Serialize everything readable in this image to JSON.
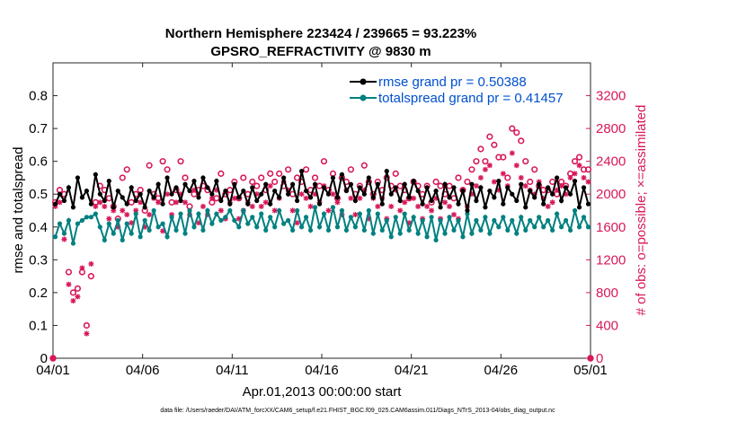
{
  "chart_data": {
    "type": "line",
    "title_line1": "Northern Hemisphere 223424 / 239665 = 93.223%",
    "title_line2": "GPSRO_REFRACTIVITY @ 9830 m",
    "xlabel": "Apr.01,2013 00:00:00 start",
    "ylabel_left": "rmse and totalspread",
    "ylabel_right": "# of obs: o=possible; ×=assimilated",
    "footer": "data file: /Users/raeder/DAI/ATM_forcXX/CAM6_setup/f.e21.FHIST_BGC.f09_025.CAM6assim.011/Diags_NTrS_2013-04/obs_diag_output.nc",
    "xlim": [
      0,
      30
    ],
    "ylim_left": [
      0,
      0.9
    ],
    "ylim_right": [
      0,
      3600
    ],
    "x_ticks": [
      0,
      5,
      10,
      15,
      20,
      25,
      30
    ],
    "x_tick_labels": [
      "04/01",
      "04/06",
      "04/11",
      "04/16",
      "04/21",
      "04/26",
      "05/01"
    ],
    "y_left_ticks": [
      0,
      0.1,
      0.2,
      0.3,
      0.4,
      0.5,
      0.6,
      0.7,
      0.8
    ],
    "y_left_tick_labels": [
      "0",
      "0.1",
      "0.2",
      "0.3",
      "0.4",
      "0.5",
      "0.6",
      "0.7",
      "0.8"
    ],
    "y_right_ticks": [
      0,
      400,
      800,
      1200,
      1600,
      2000,
      2400,
      2800,
      3200
    ],
    "y_right_tick_labels": [
      "0",
      "400",
      "800",
      "1200",
      "1600",
      "2000",
      "2400",
      "2800",
      "3200"
    ],
    "legend": [
      "rmse grand pr = 0.50388",
      "totalspread grand pr = 0.41457"
    ],
    "colors": {
      "rmse": "#000000",
      "spread": "#008080",
      "obs": "#d8185a",
      "axis_right": "#d8185a",
      "legend_text": "#0050d0"
    },
    "x": [
      0.125,
      0.375,
      0.625,
      0.875,
      1.125,
      1.375,
      1.625,
      1.875,
      2.125,
      2.375,
      2.625,
      2.875,
      3.125,
      3.375,
      3.625,
      3.875,
      4.125,
      4.375,
      4.625,
      4.875,
      5.125,
      5.375,
      5.625,
      5.875,
      6.125,
      6.375,
      6.625,
      6.875,
      7.125,
      7.375,
      7.625,
      7.875,
      8.125,
      8.375,
      8.625,
      8.875,
      9.125,
      9.375,
      9.625,
      9.875,
      10.125,
      10.375,
      10.625,
      10.875,
      11.125,
      11.375,
      11.625,
      11.875,
      12.125,
      12.375,
      12.625,
      12.875,
      13.125,
      13.375,
      13.625,
      13.875,
      14.125,
      14.375,
      14.625,
      14.875,
      15.125,
      15.375,
      15.625,
      15.875,
      16.125,
      16.375,
      16.625,
      16.875,
      17.125,
      17.375,
      17.625,
      17.875,
      18.125,
      18.375,
      18.625,
      18.875,
      19.125,
      19.375,
      19.625,
      19.875,
      20.125,
      20.375,
      20.625,
      20.875,
      21.125,
      21.375,
      21.625,
      21.875,
      22.125,
      22.375,
      22.625,
      22.875,
      23.125,
      23.375,
      23.625,
      23.875,
      24.125,
      24.375,
      24.625,
      24.875,
      25.125,
      25.375,
      25.625,
      25.875,
      26.125,
      26.375,
      26.625,
      26.875,
      27.125,
      27.375,
      27.625,
      27.875,
      28.125,
      28.375,
      28.625,
      28.875,
      29.125,
      29.375,
      29.625,
      29.875
    ],
    "series": [
      {
        "name": "rmse",
        "axis": "left",
        "values": [
          0.47,
          0.5,
          0.48,
          0.52,
          0.46,
          0.55,
          0.49,
          0.51,
          0.47,
          0.56,
          0.5,
          0.48,
          0.54,
          0.46,
          0.51,
          0.49,
          0.47,
          0.52,
          0.48,
          0.5,
          0.46,
          0.51,
          0.49,
          0.53,
          0.47,
          0.55,
          0.5,
          0.52,
          0.48,
          0.53,
          0.51,
          0.54,
          0.49,
          0.55,
          0.52,
          0.5,
          0.54,
          0.48,
          0.51,
          0.47,
          0.53,
          0.49,
          0.51,
          0.47,
          0.52,
          0.48,
          0.5,
          0.53,
          0.47,
          0.51,
          0.49,
          0.55,
          0.5,
          0.53,
          0.48,
          0.57,
          0.51,
          0.49,
          0.53,
          0.47,
          0.52,
          0.5,
          0.55,
          0.49,
          0.56,
          0.51,
          0.53,
          0.48,
          0.52,
          0.5,
          0.55,
          0.49,
          0.53,
          0.47,
          0.57,
          0.5,
          0.52,
          0.48,
          0.53,
          0.49,
          0.54,
          0.51,
          0.47,
          0.52,
          0.48,
          0.51,
          0.46,
          0.53,
          0.49,
          0.52,
          0.47,
          0.51,
          0.45,
          0.53,
          0.48,
          0.52,
          0.46,
          0.51,
          0.49,
          0.54,
          0.47,
          0.52,
          0.5,
          0.48,
          0.53,
          0.46,
          0.51,
          0.49,
          0.53,
          0.47,
          0.52,
          0.5,
          0.55,
          0.48,
          0.52,
          0.5,
          0.54,
          0.46,
          0.52,
          0.47
        ]
      },
      {
        "name": "totalspread",
        "axis": "left",
        "values": [
          0.37,
          0.41,
          0.38,
          0.42,
          0.35,
          0.41,
          0.42,
          0.43,
          0.43,
          0.44,
          0.4,
          0.36,
          0.41,
          0.38,
          0.42,
          0.36,
          0.41,
          0.38,
          0.44,
          0.37,
          0.42,
          0.39,
          0.45,
          0.4,
          0.41,
          0.37,
          0.43,
          0.39,
          0.44,
          0.38,
          0.45,
          0.4,
          0.44,
          0.39,
          0.45,
          0.41,
          0.44,
          0.42,
          0.43,
          0.45,
          0.42,
          0.4,
          0.45,
          0.41,
          0.43,
          0.4,
          0.44,
          0.39,
          0.43,
          0.4,
          0.45,
          0.41,
          0.42,
          0.39,
          0.45,
          0.4,
          0.43,
          0.39,
          0.46,
          0.4,
          0.44,
          0.39,
          0.46,
          0.4,
          0.45,
          0.39,
          0.43,
          0.4,
          0.44,
          0.39,
          0.45,
          0.38,
          0.44,
          0.39,
          0.42,
          0.37,
          0.43,
          0.38,
          0.44,
          0.39,
          0.43,
          0.38,
          0.42,
          0.37,
          0.43,
          0.36,
          0.42,
          0.38,
          0.43,
          0.39,
          0.42,
          0.37,
          0.44,
          0.38,
          0.42,
          0.39,
          0.43,
          0.38,
          0.42,
          0.4,
          0.43,
          0.39,
          0.42,
          0.38,
          0.43,
          0.39,
          0.42,
          0.4,
          0.43,
          0.4,
          0.42,
          0.39,
          0.44,
          0.4,
          0.42,
          0.39,
          0.45,
          0.4,
          0.43,
          0.4
        ]
      },
      {
        "name": "obs possible",
        "axis": "right",
        "values": [
          1900,
          2050,
          2000,
          1050,
          800,
          850,
          1050,
          400,
          1000,
          1900,
          2100,
          2050,
          1950,
          1850,
          1700,
          2200,
          2300,
          1900,
          2000,
          2050,
          1800,
          2350,
          2000,
          1950,
          2400,
          2300,
          1900,
          2050,
          2400,
          2200,
          1850,
          2000,
          2050,
          2100,
          2050,
          1900,
          1950,
          2250,
          2000,
          2050,
          2150,
          1950,
          2200,
          2000,
          2150,
          2100,
          2200,
          2050,
          2250,
          2150,
          2250,
          2100,
          2300,
          2000,
          2200,
          2150,
          2300,
          2050,
          2200,
          2100,
          2400,
          2050,
          2250,
          1950,
          2200,
          2150,
          2300,
          2000,
          2100,
          2350,
          2150,
          2000,
          2150,
          2050,
          2200,
          2100,
          2250,
          2100,
          2050,
          1950,
          2150,
          2100,
          2000,
          2100,
          1900,
          2150,
          2100,
          2000,
          2100,
          1950,
          2200,
          2050,
          2150,
          2300,
          2400,
          2550,
          2400,
          2700,
          2600,
          2450,
          2450,
          2200,
          2800,
          2750,
          2650,
          2400,
          2150,
          2300,
          2100,
          2050,
          2050,
          2150,
          2000,
          2150,
          2100,
          2250,
          2400,
          2450,
          2300,
          2300
        ]
      },
      {
        "name": "obs assimilated",
        "axis": "right",
        "values": [
          1850,
          1900,
          1450,
          900,
          700,
          750,
          1100,
          300,
          1150,
          1850,
          1900,
          1850,
          1700,
          1800,
          1600,
          1800,
          1750,
          1650,
          1800,
          1900,
          1600,
          1750,
          1950,
          1900,
          1550,
          2000,
          1750,
          1900,
          2000,
          1900,
          1750,
          2050,
          1650,
          1850,
          1750,
          1950,
          2050,
          1800,
          1700,
          1900,
          1950,
          1700,
          1800,
          1900,
          1850,
          2000,
          1850,
          1900,
          2100,
          1800,
          1950,
          2150,
          2050,
          1800,
          1650,
          2000,
          1950,
          1850,
          2000,
          1900,
          2100,
          1800,
          2000,
          1900,
          1750,
          2050,
          1950,
          1750,
          1950,
          2050,
          1700,
          1950,
          1850,
          1950,
          1700,
          1850,
          2050,
          1800,
          1900,
          1650,
          1950,
          1850,
          1700,
          1850,
          1800,
          1950,
          1700,
          1900,
          1850,
          1750,
          1700,
          2050,
          1850,
          2000,
          2100,
          2200,
          2300,
          2350,
          2150,
          2050,
          2250,
          2100,
          2500,
          2350,
          2200,
          2100,
          2050,
          2000,
          2150,
          1950,
          1850,
          1900,
          2050,
          2100,
          2000,
          2200,
          2250,
          2350,
          2200,
          2150
        ]
      }
    ]
  }
}
